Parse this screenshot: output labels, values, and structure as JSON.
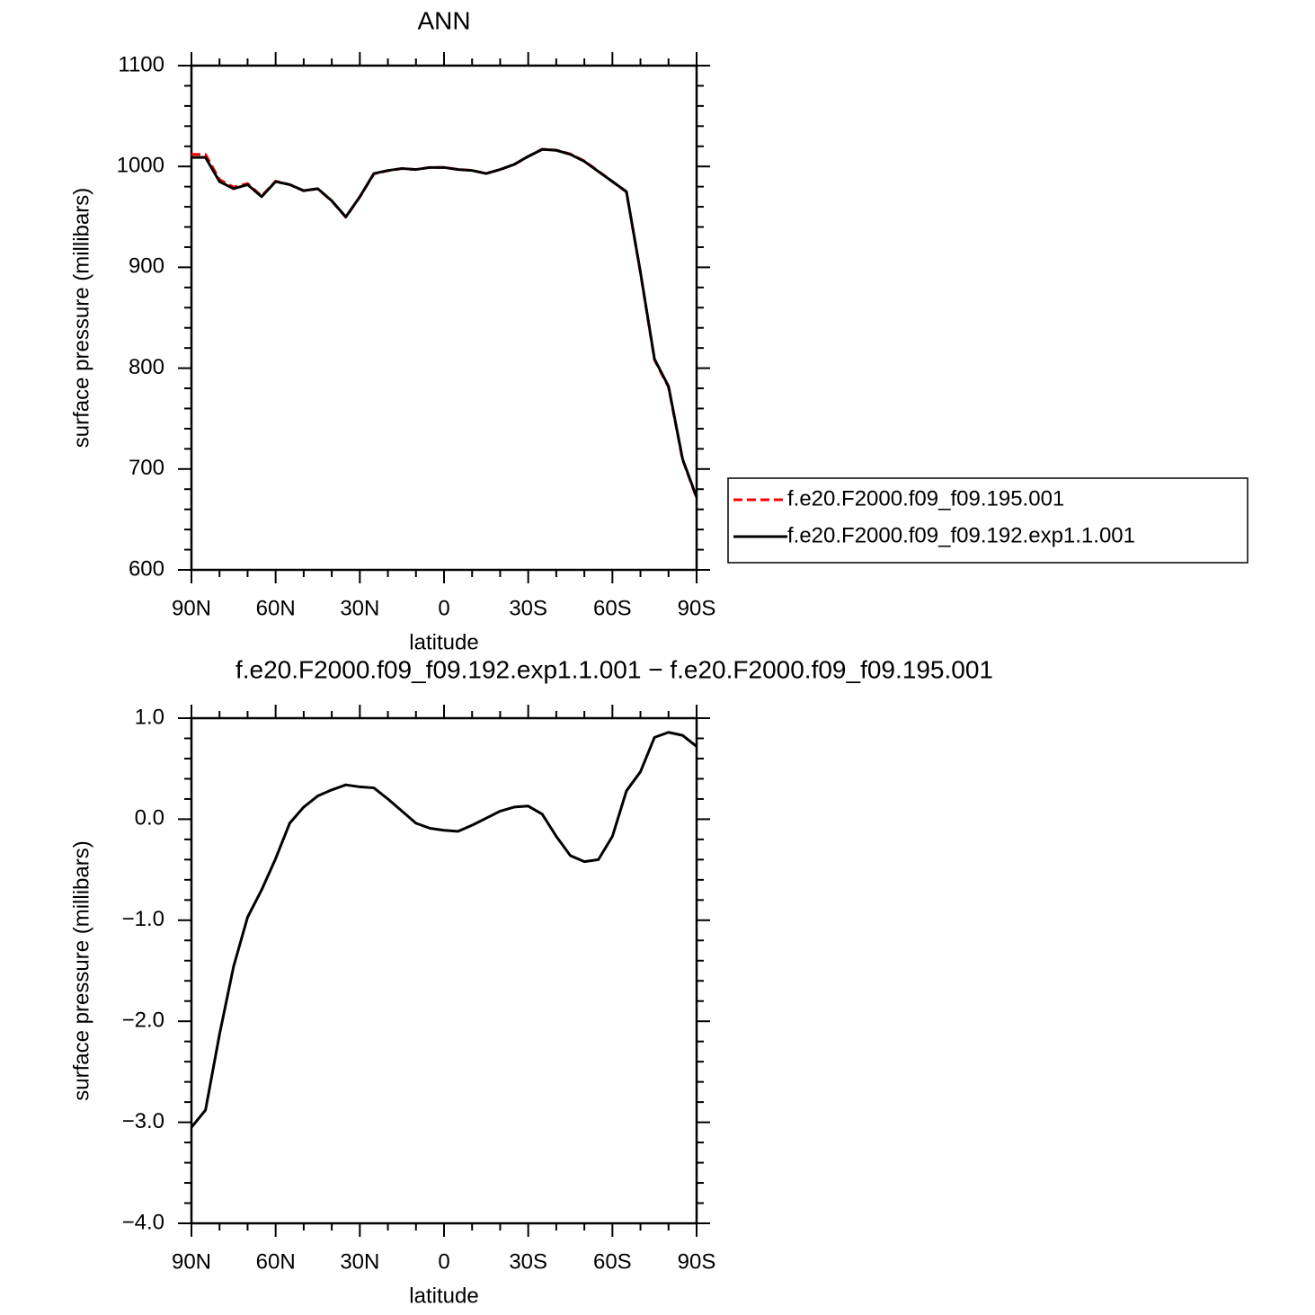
{
  "chart_data": [
    {
      "type": "line",
      "title": "ANN",
      "x_label": "latitude",
      "y_label": "surface pressure (millibars)",
      "x": [
        90,
        85,
        80,
        75,
        70,
        65,
        60,
        55,
        50,
        45,
        40,
        35,
        30,
        25,
        20,
        15,
        10,
        5,
        0,
        -5,
        -10,
        -15,
        -20,
        -25,
        -30,
        -35,
        -40,
        -45,
        -50,
        -55,
        -60,
        -65,
        -70,
        -75,
        -80,
        -85,
        -90
      ],
      "xlim": [
        90,
        -90
      ],
      "xticks": [
        {
          "value": 90,
          "label": "90N"
        },
        {
          "value": 60,
          "label": "60N"
        },
        {
          "value": 30,
          "label": "30N"
        },
        0,
        {
          "value": -30,
          "label": "30S"
        },
        {
          "value": -60,
          "label": "60S"
        },
        {
          "value": -90,
          "label": "90S"
        }
      ],
      "ylim": [
        600,
        1100
      ],
      "yticks": [
        600,
        700,
        800,
        900,
        1000,
        1100
      ],
      "legend": "right",
      "series": [
        {
          "name": "f.e20.F2000.f09_f09.195.001",
          "color": "#ff0000",
          "linestyle": "dashed",
          "values": [
            1012,
            1012,
            987,
            979.5,
            983,
            970.7,
            985.4,
            982,
            975.9,
            977.8,
            965.7,
            949.7,
            969.7,
            992.7,
            995.8,
            997.9,
            997,
            999.1,
            999.1,
            997.1,
            996.1,
            993,
            996.9,
            1001.9,
            1009.9,
            1017,
            1016.2,
            1012.4,
            1005.4,
            995.4,
            985.2,
            974.7,
            894.5,
            808.2,
            781.1,
            709.2,
            671.3
          ]
        },
        {
          "name": "f.e20.F2000.f09_f09.192.exp1.1.001",
          "color": "#000000",
          "linestyle": "solid",
          "values": [
            1009,
            1009,
            985,
            978,
            982,
            970,
            985,
            982,
            976,
            978,
            966,
            950,
            970,
            993,
            996,
            998,
            997,
            999,
            999,
            997,
            996,
            993,
            997,
            1002,
            1010,
            1017,
            1016,
            1012,
            1005,
            995,
            985,
            975,
            895,
            809,
            782,
            710,
            672
          ]
        }
      ]
    },
    {
      "type": "line",
      "title": "f.e20.F2000.f09_f09.192.exp1.1.001 − f.e20.F2000.f09_f09.195.001",
      "x_label": "latitude",
      "y_label": "surface pressure (millibars)",
      "x": [
        90,
        85,
        80,
        75,
        70,
        65,
        60,
        55,
        50,
        45,
        40,
        35,
        30,
        25,
        20,
        15,
        10,
        5,
        0,
        -5,
        -10,
        -15,
        -20,
        -25,
        -30,
        -35,
        -40,
        -45,
        -50,
        -55,
        -60,
        -65,
        -70,
        -75,
        -80,
        -85,
        -90
      ],
      "xlim": [
        90,
        -90
      ],
      "xticks": [
        {
          "value": 90,
          "label": "90N"
        },
        {
          "value": 60,
          "label": "60N"
        },
        {
          "value": 30,
          "label": "30N"
        },
        0,
        {
          "value": -30,
          "label": "30S"
        },
        {
          "value": -60,
          "label": "60S"
        },
        {
          "value": -90,
          "label": "90S"
        }
      ],
      "ylim": [
        -4,
        1
      ],
      "yticks": [
        {
          "value": -4,
          "label": "−4.0"
        },
        {
          "value": -3,
          "label": "−3.0"
        },
        {
          "value": -2,
          "label": "−2.0"
        },
        {
          "value": -1,
          "label": "−1.0"
        },
        {
          "value": 0,
          "label": "0.0"
        },
        {
          "value": 1,
          "label": "1.0"
        }
      ],
      "series": [
        {
          "color": "#000000",
          "linestyle": "solid",
          "values": [
            -3.05,
            -2.88,
            -2.13,
            -1.46,
            -0.97,
            -0.7,
            -0.39,
            -0.04,
            0.12,
            0.23,
            0.29,
            0.34,
            0.32,
            0.31,
            0.2,
            0.08,
            -0.04,
            -0.09,
            -0.11,
            -0.12,
            -0.06,
            0.01,
            0.08,
            0.12,
            0.13,
            0.05,
            -0.17,
            -0.36,
            -0.42,
            -0.4,
            -0.17,
            0.28,
            0.47,
            0.81,
            0.86,
            0.83,
            0.72
          ]
        }
      ]
    }
  ]
}
